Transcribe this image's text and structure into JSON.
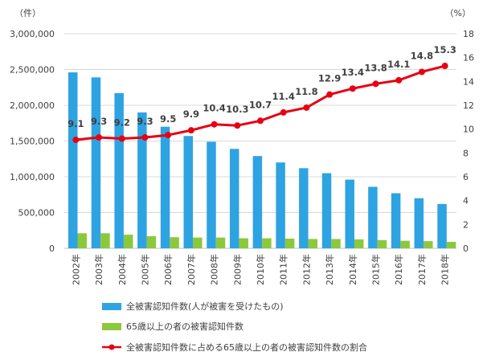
{
  "chart_data": {
    "type": "bar",
    "categories": [
      "2002年",
      "2003年",
      "2004年",
      "2005年",
      "2006年",
      "2007年",
      "2008年",
      "2009年",
      "2010年",
      "2011年",
      "2012年",
      "2013年",
      "2014年",
      "2015年",
      "2016年",
      "2017年",
      "2018年"
    ],
    "left_axis": {
      "unit": "（件）",
      "ylim": [
        0,
        3000000
      ],
      "ticks": [
        "0",
        "500,000",
        "1,000,000",
        "1,500,000",
        "2,000,000",
        "2,500,000",
        "3,000,000"
      ]
    },
    "right_axis": {
      "unit": "（%）",
      "ylim": [
        0,
        18
      ],
      "ticks": [
        "0",
        "2",
        "4",
        "6",
        "8",
        "10",
        "12",
        "14",
        "16",
        "18"
      ]
    },
    "series": [
      {
        "name": "全被害認知件数(人が被害を受けたもの)",
        "kind": "bar",
        "axis": "left",
        "color": "#2ea3e2",
        "values": [
          2460000,
          2390000,
          2170000,
          1900000,
          1700000,
          1570000,
          1490000,
          1390000,
          1290000,
          1200000,
          1120000,
          1050000,
          960000,
          860000,
          770000,
          700000,
          620000
        ]
      },
      {
        "name": "65歳以上の者の被害認知件数",
        "kind": "bar",
        "axis": "left",
        "color": "#8cc83c",
        "values": [
          210000,
          210000,
          190000,
          170000,
          155000,
          150000,
          150000,
          140000,
          140000,
          135000,
          130000,
          130000,
          125000,
          115000,
          105000,
          100000,
          90000
        ]
      },
      {
        "name": "全被害認知件数に占める65歳以上の者の被害認知件数の割合",
        "kind": "line",
        "axis": "right",
        "color": "#e60012",
        "values": [
          9.1,
          9.3,
          9.2,
          9.3,
          9.5,
          9.9,
          10.4,
          10.3,
          10.7,
          11.4,
          11.8,
          12.9,
          13.4,
          13.8,
          14.1,
          14.8,
          15.3
        ],
        "labels": [
          "9.1",
          "9.3",
          "9.2",
          "9.3",
          "9.5",
          "9.9",
          "10.4",
          "10.3",
          "10.7",
          "11.4",
          "11.8",
          "12.9",
          "13.4",
          "13.8",
          "14.1",
          "14.8",
          "15.3"
        ]
      }
    ],
    "grid": true,
    "legend": "bottom"
  }
}
